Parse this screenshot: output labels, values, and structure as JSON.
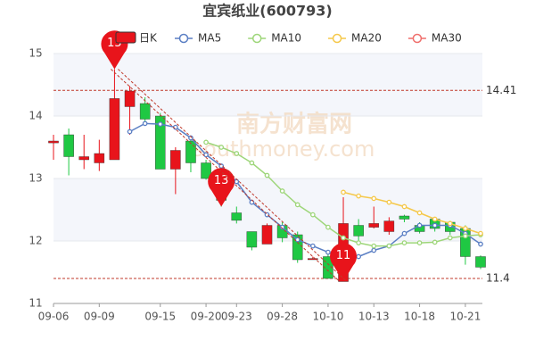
{
  "chart_data": {
    "type": "candlestick",
    "title": "宜宾纸业(600793)",
    "watermark": [
      "南方财富网",
      "southmoney.com"
    ],
    "categories": [
      "09-06",
      null,
      null,
      "09-09",
      null,
      null,
      null,
      "09-15",
      null,
      null,
      "09-20",
      null,
      "09-23",
      null,
      null,
      "09-28",
      null,
      null,
      "10-10",
      null,
      null,
      "10-13",
      null,
      null,
      "10-18",
      null,
      null,
      "10-21",
      null
    ],
    "candles": {
      "name": "日K",
      "up_color": "#e8141b",
      "down_color": "#1fc843",
      "open": [
        13.57,
        13.7,
        13.3,
        13.25,
        13.3,
        14.15,
        14.2,
        14.0,
        13.15,
        13.6,
        13.25,
        12.95,
        12.45,
        12.15,
        11.95,
        12.25,
        12.1,
        11.7,
        11.75,
        11.35,
        12.25,
        12.22,
        12.15,
        12.4,
        12.25,
        12.35,
        12.3,
        12.2,
        11.75
      ],
      "close": [
        13.6,
        13.35,
        13.35,
        13.4,
        14.28,
        14.4,
        13.95,
        13.15,
        13.45,
        13.25,
        13.0,
        12.65,
        12.33,
        11.9,
        12.25,
        12.05,
        11.7,
        11.72,
        11.4,
        12.28,
        12.08,
        12.28,
        12.32,
        12.35,
        12.15,
        12.2,
        12.15,
        11.75,
        11.58
      ],
      "high": [
        13.7,
        13.8,
        13.7,
        13.62,
        14.75,
        14.48,
        14.3,
        14.05,
        13.5,
        13.65,
        13.3,
        13.05,
        12.55,
        12.15,
        12.28,
        12.3,
        12.15,
        11.75,
        11.8,
        12.7,
        12.35,
        12.55,
        12.38,
        12.42,
        12.3,
        12.38,
        12.32,
        12.25,
        11.77
      ],
      "low": [
        13.3,
        13.05,
        13.15,
        13.12,
        13.3,
        13.7,
        13.9,
        13.15,
        12.75,
        13.1,
        12.98,
        12.55,
        12.28,
        11.85,
        11.95,
        11.98,
        11.65,
        11.7,
        11.4,
        11.35,
        12.0,
        12.2,
        12.1,
        12.3,
        12.12,
        12.15,
        12.1,
        11.62,
        11.55
      ]
    },
    "series": [
      {
        "name": "MA5",
        "color": "#5b7fc4",
        "values": [
          null,
          null,
          null,
          null,
          null,
          13.75,
          13.88,
          13.87,
          13.82,
          13.65,
          13.38,
          13.2,
          12.95,
          12.62,
          12.42,
          12.22,
          12.02,
          11.92,
          11.82,
          11.7,
          11.75,
          11.85,
          11.92,
          12.12,
          12.25,
          12.25,
          12.25,
          12.12,
          11.95
        ]
      },
      {
        "name": "MA10",
        "color": "#9ed67a",
        "values": [
          null,
          null,
          null,
          null,
          null,
          null,
          null,
          null,
          null,
          null,
          13.58,
          13.5,
          13.4,
          13.25,
          13.05,
          12.8,
          12.58,
          12.42,
          12.22,
          12.05,
          11.97,
          11.92,
          11.92,
          11.97,
          11.97,
          11.98,
          12.05,
          12.08,
          12.1
        ]
      },
      {
        "name": "MA20",
        "color": "#f5c84a",
        "values": [
          null,
          null,
          null,
          null,
          null,
          null,
          null,
          null,
          null,
          null,
          null,
          null,
          null,
          null,
          null,
          null,
          null,
          null,
          null,
          12.78,
          12.72,
          12.68,
          12.62,
          12.55,
          12.45,
          12.35,
          12.28,
          12.2,
          12.12
        ]
      },
      {
        "name": "MA30",
        "color": "#ef6f6c",
        "values": [
          null,
          null,
          null,
          null,
          null,
          null,
          null,
          null,
          null,
          null,
          null,
          null,
          null,
          null,
          null,
          null,
          null,
          null,
          null,
          null,
          null,
          null,
          null,
          null,
          null,
          null,
          null,
          null,
          null
        ]
      }
    ],
    "ylim": [
      11,
      15
    ],
    "yticks": [
      11,
      12,
      13,
      14,
      15
    ],
    "pins": [
      {
        "label": "15",
        "value": 14.75
      },
      {
        "label": "13",
        "value": 12.55
      },
      {
        "label": "11",
        "value": 11.35
      }
    ],
    "ref_lines": [
      {
        "label": "14.41",
        "value": 14.41
      },
      {
        "label": "11.4",
        "value": 11.4
      }
    ]
  }
}
